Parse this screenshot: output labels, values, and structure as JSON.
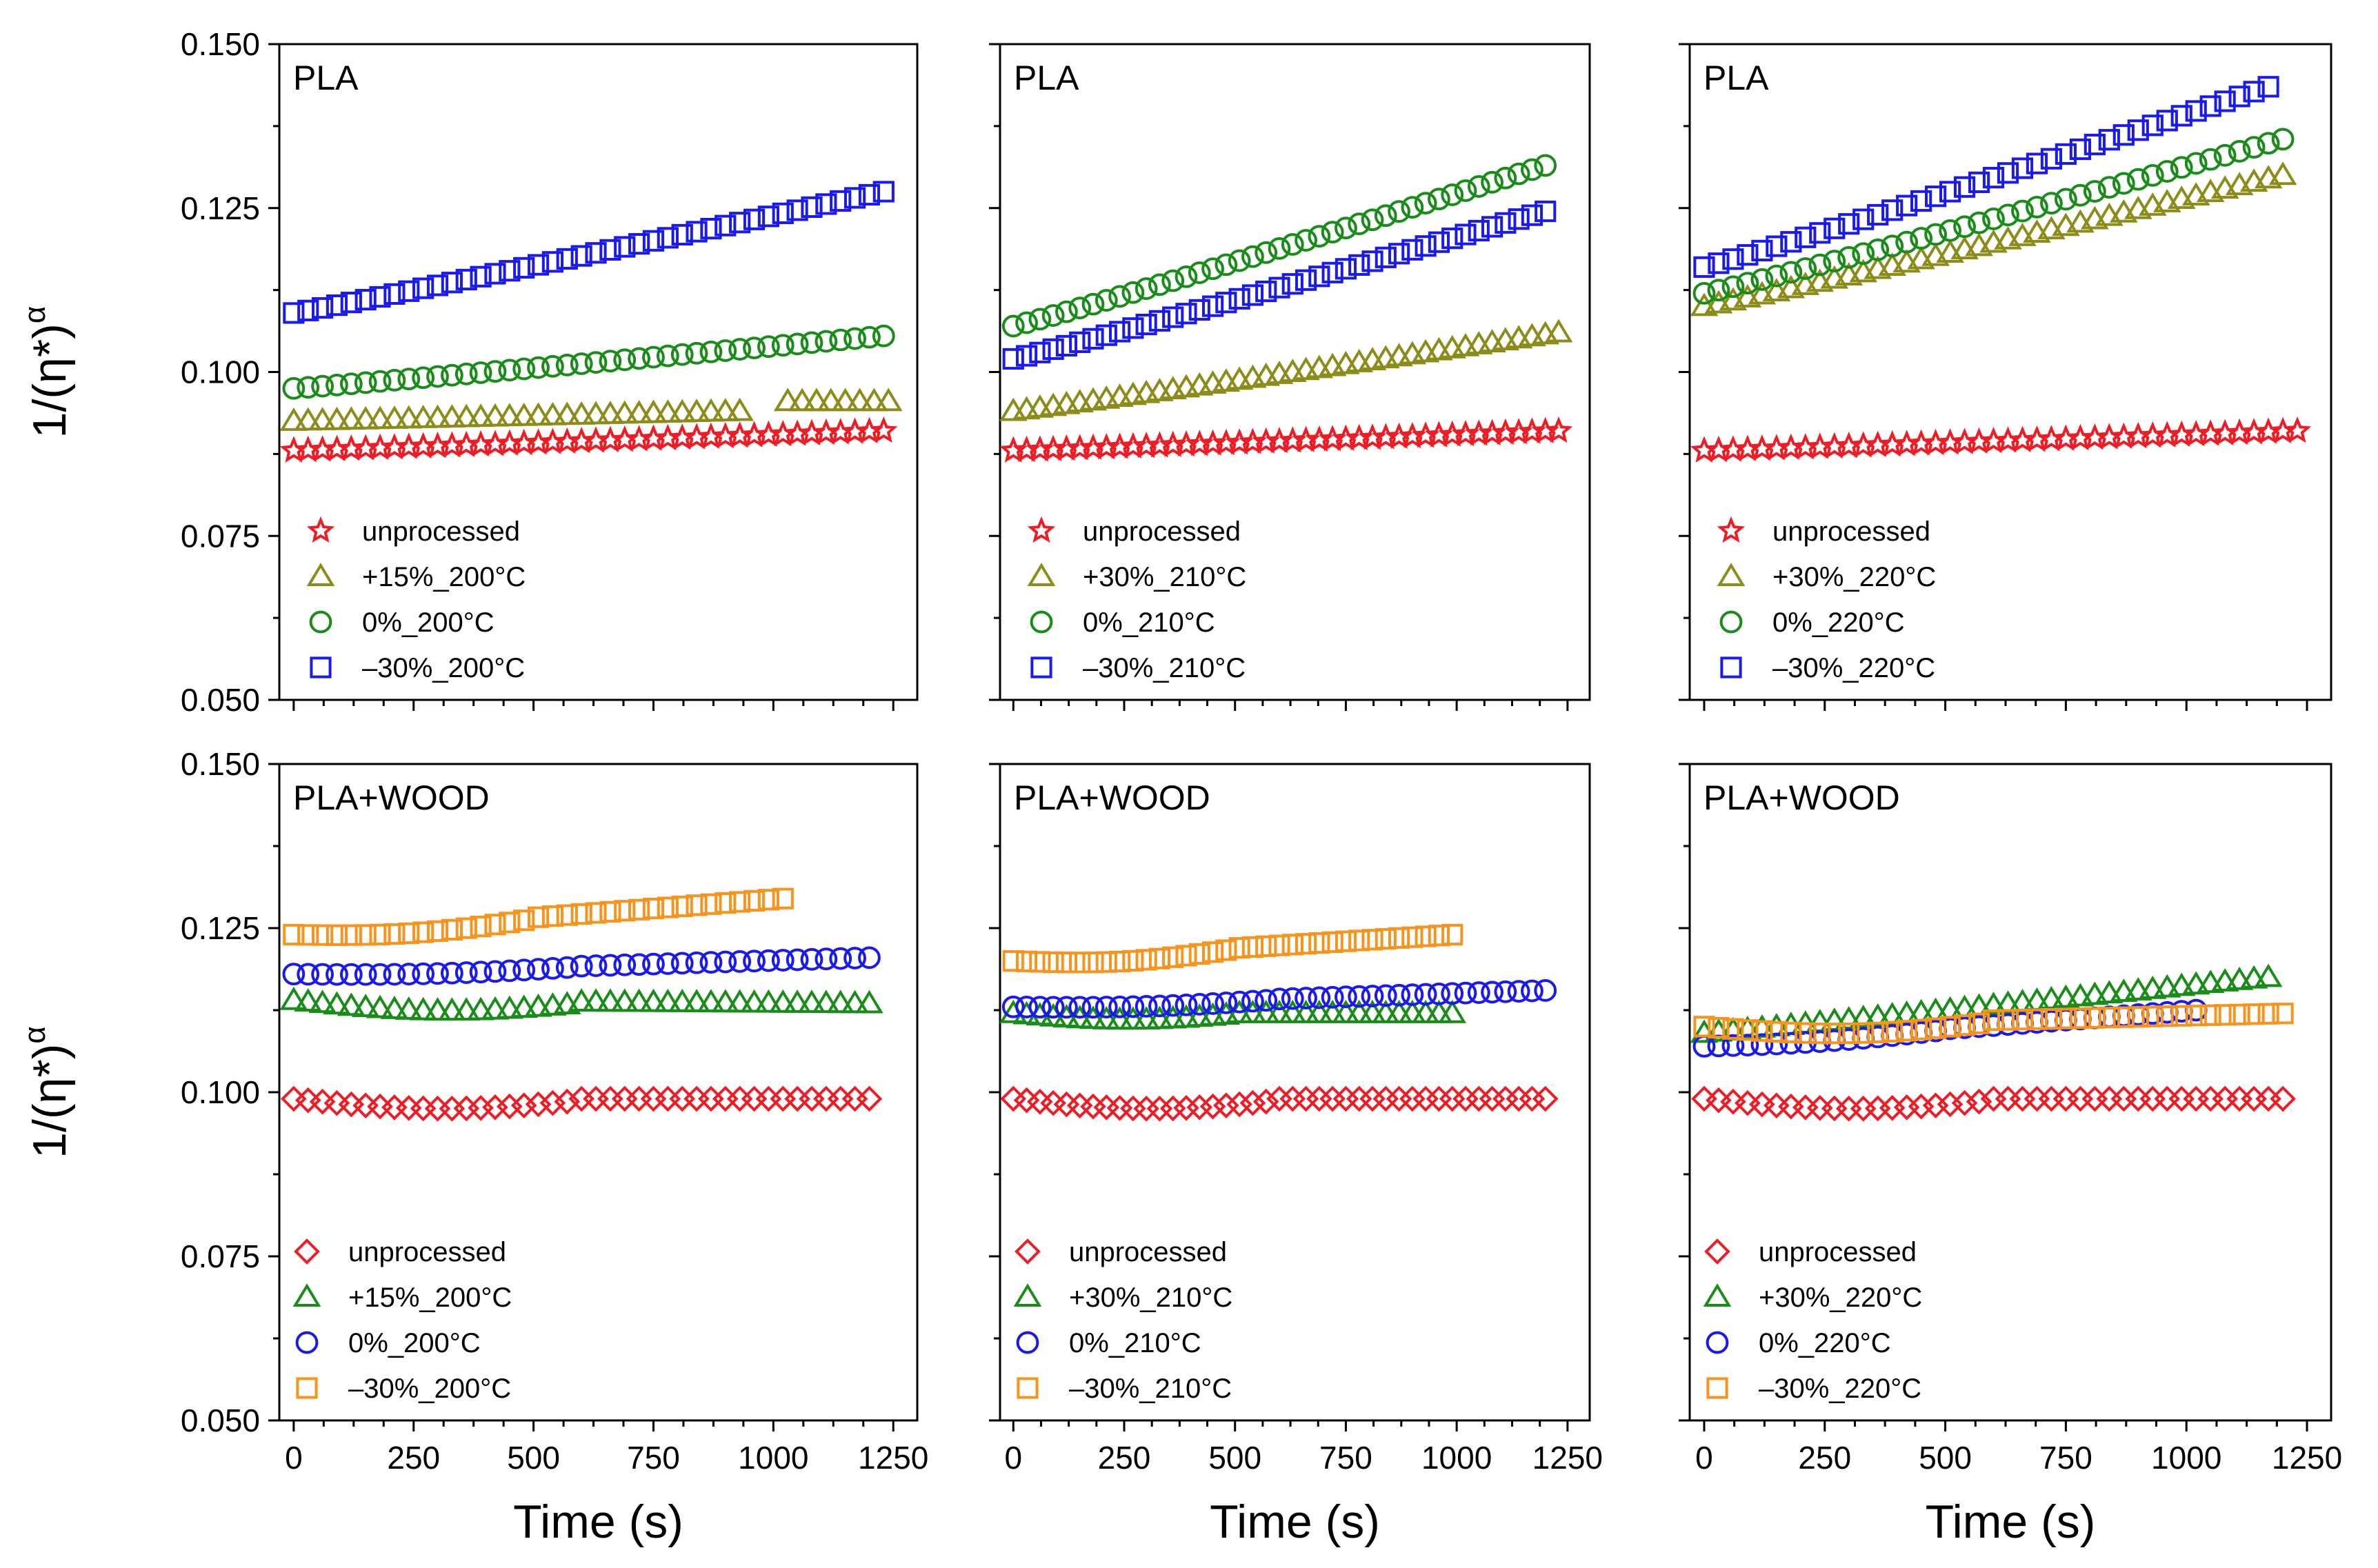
{
  "figure": {
    "ylabel_base": "1/(η*)",
    "ylabel_sup": "α",
    "xlabel": "Time (s)"
  },
  "chart_data": [
    {
      "type": "scatter",
      "title": "PLA",
      "xlim": [
        -30,
        1300
      ],
      "ylim": [
        0.05,
        0.15
      ],
      "xticks": [
        0,
        250,
        500,
        750,
        1000,
        1250
      ],
      "yticks": [
        0.05,
        0.075,
        0.1,
        0.125,
        0.15
      ],
      "ytick_labels": [
        "0.050",
        "0.075",
        "0.100",
        "0.125",
        "0.150"
      ],
      "xtick_labels": [
        "0",
        "250",
        "500",
        "750",
        "1000",
        "1250"
      ],
      "show_x_ticklabels": false,
      "show_y_ticklabels": true,
      "show_xlabel": false,
      "show_ylabel": true,
      "series": [
        {
          "name": "unprocessed",
          "marker": "star",
          "color": "#ee1c25",
          "x": [
            0,
            1240,
            30
          ],
          "y": [
            0.088,
            0.091,
            0.088
          ]
        },
        {
          "name": "+15%_200°C",
          "marker": "triangle",
          "color": "#8c8c1a",
          "x": [
            0,
            930,
            30
          ],
          "y": [
            0.0925,
            0.094,
            0.0925
          ],
          "x2": [
            1030,
            1230,
            30
          ],
          "y2": [
            0.0955,
            0.0955
          ]
        },
        {
          "name": "0%_200°C",
          "marker": "circle",
          "color": "#1a8c1a",
          "x": [
            0,
            1240,
            30
          ],
          "y": [
            0.0975,
            0.1055,
            0.0975
          ]
        },
        {
          "name": "–30%_200°C",
          "marker": "square",
          "color": "#1a1aee",
          "x": [
            0,
            1240,
            30
          ],
          "y": [
            0.109,
            0.1275,
            0.109
          ]
        }
      ]
    },
    {
      "type": "scatter",
      "title": "PLA",
      "xlim": [
        -30,
        1300
      ],
      "ylim": [
        0.05,
        0.15
      ],
      "xticks": [
        0,
        250,
        500,
        750,
        1000,
        1250
      ],
      "yticks": [
        0.05,
        0.075,
        0.1,
        0.125,
        0.15
      ],
      "ytick_labels": [
        "0.050",
        "0.075",
        "0.100",
        "0.125",
        "0.150"
      ],
      "xtick_labels": [
        "0",
        "250",
        "500",
        "750",
        "1000",
        "1250"
      ],
      "show_x_ticklabels": false,
      "show_y_ticklabels": false,
      "show_xlabel": false,
      "show_ylabel": false,
      "series": [
        {
          "name": "unprocessed",
          "marker": "star",
          "color": "#ee1c25",
          "x": [
            0,
            1240,
            30
          ],
          "y": [
            0.088,
            0.091,
            0.088
          ]
        },
        {
          "name": "+30%_210°C",
          "marker": "triangle",
          "color": "#8c8c1a",
          "x": [
            0,
            1240,
            30
          ],
          "y": [
            0.094,
            0.106,
            0.094
          ]
        },
        {
          "name": "0%_210°C",
          "marker": "circle",
          "color": "#1a8c1a",
          "x": [
            0,
            1200,
            30
          ],
          "y": [
            0.107,
            0.1315,
            0.107
          ]
        },
        {
          "name": "–30%_210°C",
          "marker": "square",
          "color": "#1a1aee",
          "x": [
            0,
            1200,
            30
          ],
          "y": [
            0.102,
            0.1245,
            0.102
          ]
        }
      ]
    },
    {
      "type": "scatter",
      "title": "PLA",
      "xlim": [
        -30,
        1300
      ],
      "ylim": [
        0.05,
        0.15
      ],
      "xticks": [
        0,
        250,
        500,
        750,
        1000,
        1250
      ],
      "yticks": [
        0.05,
        0.075,
        0.1,
        0.125,
        0.15
      ],
      "ytick_labels": [
        "0.050",
        "0.075",
        "0.100",
        "0.125",
        "0.150"
      ],
      "xtick_labels": [
        "0",
        "250",
        "500",
        "750",
        "1000",
        "1250"
      ],
      "show_x_ticklabels": false,
      "show_y_ticklabels": false,
      "show_xlabel": false,
      "show_ylabel": false,
      "series": [
        {
          "name": "unprocessed",
          "marker": "star",
          "color": "#ee1c25",
          "x": [
            0,
            1240,
            30
          ],
          "y": [
            0.088,
            0.091,
            0.088
          ]
        },
        {
          "name": "+30%_220°C",
          "marker": "triangle",
          "color": "#8c8c1a",
          "x": [
            0,
            1200,
            30
          ],
          "y": [
            0.11,
            0.13,
            0.11
          ]
        },
        {
          "name": "0%_220°C",
          "marker": "circle",
          "color": "#1a8c1a",
          "x": [
            0,
            1200,
            30
          ],
          "y": [
            0.112,
            0.1355,
            0.112
          ]
        },
        {
          "name": "–30%_220°C",
          "marker": "square",
          "color": "#1a1aee",
          "x": [
            0,
            1170,
            30
          ],
          "y": [
            0.116,
            0.1435,
            0.116
          ]
        }
      ]
    },
    {
      "type": "scatter",
      "title": "PLA+WOOD",
      "xlim": [
        -30,
        1300
      ],
      "ylim": [
        0.05,
        0.15
      ],
      "xticks": [
        0,
        250,
        500,
        750,
        1000,
        1250
      ],
      "yticks": [
        0.05,
        0.075,
        0.1,
        0.125,
        0.15
      ],
      "ytick_labels": [
        "0.050",
        "0.075",
        "0.100",
        "0.125",
        "0.150"
      ],
      "xtick_labels": [
        "0",
        "250",
        "500",
        "750",
        "1000",
        "1250"
      ],
      "show_x_ticklabels": true,
      "show_y_ticklabels": true,
      "show_xlabel": true,
      "show_ylabel": true,
      "series": [
        {
          "name": "unprocessed",
          "marker": "diamond",
          "color": "#ee1c25",
          "x": [
            0,
            1200,
            30
          ],
          "y": [
            0.099,
            0.099,
            0.0975
          ]
        },
        {
          "name": "+15%_200°C",
          "marker": "triangle",
          "color": "#1a8c1a",
          "x": [
            0,
            1200,
            30
          ],
          "y": [
            0.114,
            0.1135,
            0.1125
          ]
        },
        {
          "name": "0%_200°C",
          "marker": "circle",
          "color": "#1a1aee",
          "x": [
            0,
            1200,
            30
          ],
          "y": [
            0.118,
            0.1205,
            0.1175
          ]
        },
        {
          "name": "–30%_200°C",
          "marker": "square",
          "color": "#f7941d",
          "x": [
            0,
            1030,
            30
          ],
          "y": [
            0.124,
            0.1295,
            0.123
          ]
        }
      ]
    },
    {
      "type": "scatter",
      "title": "PLA+WOOD",
      "xlim": [
        -30,
        1300
      ],
      "ylim": [
        0.05,
        0.15
      ],
      "xticks": [
        0,
        250,
        500,
        750,
        1000,
        1250
      ],
      "yticks": [
        0.05,
        0.075,
        0.1,
        0.125,
        0.15
      ],
      "ytick_labels": [
        "0.050",
        "0.075",
        "0.100",
        "0.125",
        "0.150"
      ],
      "xtick_labels": [
        "0",
        "250",
        "500",
        "750",
        "1000",
        "1250"
      ],
      "show_x_ticklabels": true,
      "show_y_ticklabels": false,
      "show_xlabel": true,
      "show_ylabel": false,
      "series": [
        {
          "name": "unprocessed",
          "marker": "diamond",
          "color": "#ee1c25",
          "x": [
            0,
            1200,
            30
          ],
          "y": [
            0.099,
            0.099,
            0.0975
          ]
        },
        {
          "name": "+30%_210°C",
          "marker": "triangle",
          "color": "#1a8c1a",
          "x": [
            0,
            1000,
            30
          ],
          "y": [
            0.112,
            0.112,
            0.111
          ]
        },
        {
          "name": "0%_210°C",
          "marker": "circle",
          "color": "#1a1aee",
          "x": [
            0,
            1200,
            30
          ],
          "y": [
            0.113,
            0.1155,
            0.1125
          ]
        },
        {
          "name": "–30%_210°C",
          "marker": "square",
          "color": "#f7941d",
          "x": [
            0,
            1000,
            30
          ],
          "y": [
            0.12,
            0.124,
            0.119
          ]
        }
      ]
    },
    {
      "type": "scatter",
      "title": "PLA+WOOD",
      "xlim": [
        -30,
        1300
      ],
      "ylim": [
        0.05,
        0.15
      ],
      "xticks": [
        0,
        250,
        500,
        750,
        1000,
        1250
      ],
      "yticks": [
        0.05,
        0.075,
        0.1,
        0.125,
        0.15
      ],
      "ytick_labels": [
        "0.050",
        "0.075",
        "0.100",
        "0.125",
        "0.150"
      ],
      "xtick_labels": [
        "0",
        "250",
        "500",
        "750",
        "1000",
        "1250"
      ],
      "show_x_ticklabels": true,
      "show_y_ticklabels": false,
      "show_xlabel": true,
      "show_ylabel": false,
      "series": [
        {
          "name": "unprocessed",
          "marker": "diamond",
          "color": "#ee1c25",
          "x": [
            0,
            1200,
            30
          ],
          "y": [
            0.099,
            0.099,
            0.0975
          ]
        },
        {
          "name": "+30%_220°C",
          "marker": "triangle",
          "color": "#1a8c1a",
          "x": [
            0,
            1170,
            30
          ],
          "y": [
            0.109,
            0.1175,
            0.109
          ]
        },
        {
          "name": "0%_220°C",
          "marker": "circle",
          "color": "#1a1aee",
          "x": [
            0,
            1030,
            30
          ],
          "y": [
            0.107,
            0.1125,
            0.1065
          ]
        },
        {
          "name": "–30%_220°C",
          "marker": "square",
          "color": "#f7941d",
          "x": [
            0,
            1200,
            30
          ],
          "y": [
            0.11,
            0.112,
            0.1085
          ]
        }
      ]
    }
  ]
}
